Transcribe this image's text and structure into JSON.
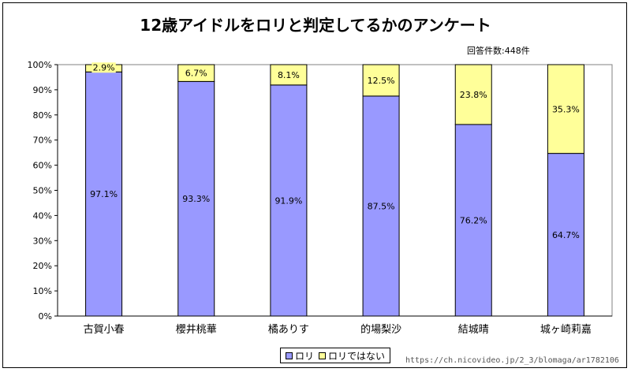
{
  "title": "12歳アイドルをロリと判定してるかのアンケート",
  "respondents": "回答件数:448件",
  "watermark": "https://ch.nicovideo.jp/2_3/blomaga/ar1782106",
  "chart_data": {
    "type": "bar",
    "stacked": true,
    "categories": [
      "古賀小春",
      "櫻井桃華",
      "橘ありす",
      "的場梨沙",
      "結城晴",
      "城ヶ崎莉嘉"
    ],
    "series": [
      {
        "name": "ロリ",
        "color": "#9999ff",
        "values": [
          97.1,
          93.3,
          91.9,
          87.5,
          76.2,
          64.7
        ],
        "labels": [
          "97.1%",
          "93.3%",
          "91.9%",
          "87.5%",
          "76.2%",
          "64.7%"
        ]
      },
      {
        "name": "ロリではない",
        "color": "#ffff99",
        "values": [
          2.9,
          6.7,
          8.1,
          12.5,
          23.8,
          35.3
        ],
        "labels": [
          "2.9%",
          "6.7%",
          "8.1%",
          "12.5%",
          "23.8%",
          "35.3%"
        ]
      }
    ],
    "ylim": [
      0,
      100
    ],
    "yticks": [
      "0%",
      "10%",
      "20%",
      "30%",
      "40%",
      "50%",
      "60%",
      "70%",
      "80%",
      "90%",
      "100%"
    ],
    "grid": false,
    "legend": "bottom"
  }
}
